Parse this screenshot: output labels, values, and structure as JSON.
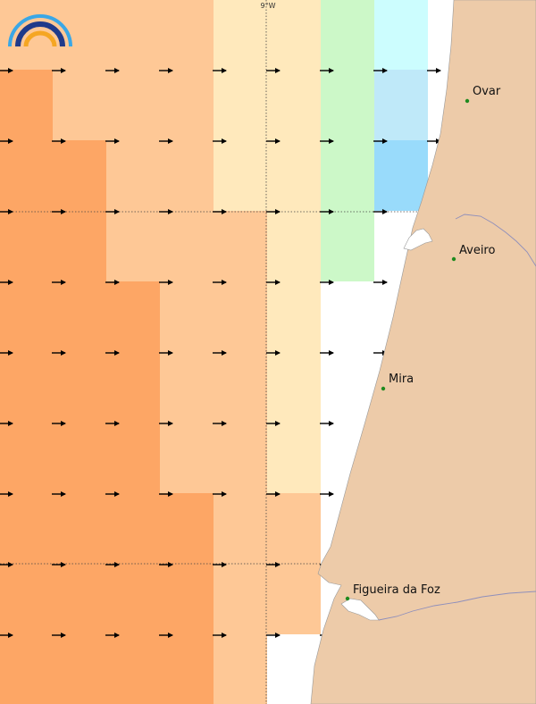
{
  "map": {
    "longitude_label": "9°W",
    "logo": {
      "icon": "rainbow-logo",
      "colors": [
        "#3aa7e6",
        "#1f3a8a",
        "#f5a623"
      ]
    },
    "cities": [
      {
        "name": "Ovar"
      },
      {
        "name": "Aveiro"
      },
      {
        "name": "Mira"
      },
      {
        "name": "Figueira da Foz"
      }
    ],
    "colors": {
      "land": "#edcba9",
      "coast_line": "#7a7aa0",
      "city_marker": "#1f8a1f",
      "grid_line": "#444444",
      "arrow": "#000000"
    },
    "palette": [
      "#fda665",
      "#fec896",
      "#ffe9bc",
      "#ccf8c8",
      "#bfe9f9",
      "#99dbfb",
      "#ccfdfe",
      "#ffffff"
    ],
    "cell_grid": [
      [
        1,
        1,
        1,
        1,
        2,
        2,
        3,
        6,
        7
      ],
      [
        0,
        1,
        1,
        1,
        2,
        2,
        3,
        4,
        7
      ],
      [
        0,
        0,
        1,
        1,
        2,
        2,
        3,
        5,
        7
      ],
      [
        0,
        0,
        1,
        1,
        1,
        2,
        3,
        7,
        7
      ],
      [
        0,
        0,
        0,
        1,
        1,
        2,
        7,
        7,
        7
      ],
      [
        0,
        0,
        0,
        1,
        1,
        2,
        7,
        7,
        7
      ],
      [
        0,
        0,
        0,
        1,
        1,
        2,
        7,
        7,
        7
      ],
      [
        0,
        0,
        0,
        0,
        1,
        1,
        7,
        7,
        7
      ],
      [
        0,
        0,
        0,
        0,
        1,
        1,
        7,
        7,
        7
      ],
      [
        0,
        0,
        0,
        0,
        1,
        7,
        7,
        7,
        7
      ]
    ],
    "wind_direction": "east"
  }
}
